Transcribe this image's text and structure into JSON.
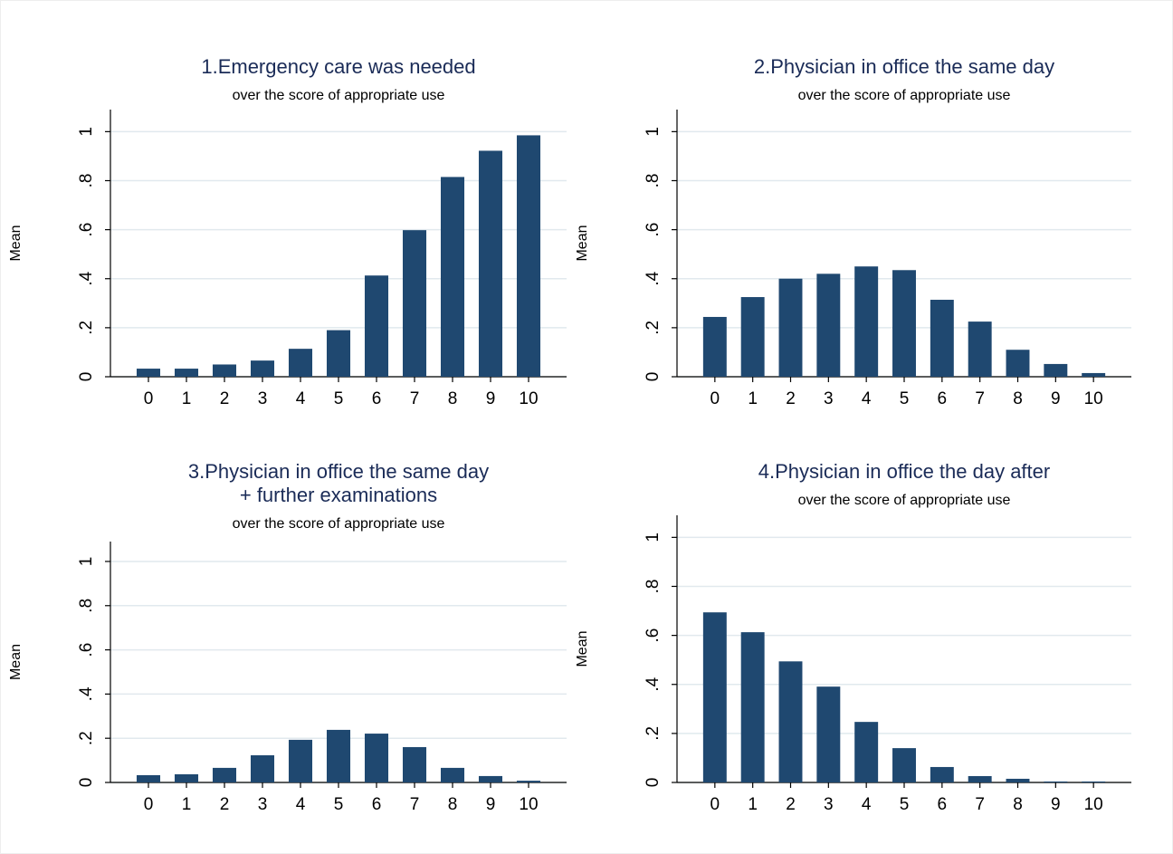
{
  "chart_data": [
    {
      "type": "bar",
      "title": [
        "1.Emergency care was needed"
      ],
      "subtitle": "over the score of appropriate use",
      "ylabel": "Mean",
      "categories": [
        0,
        1,
        2,
        3,
        4,
        5,
        6,
        7,
        8,
        9,
        10
      ],
      "values": [
        0.033,
        0.033,
        0.05,
        0.066,
        0.114,
        0.19,
        0.413,
        0.598,
        0.815,
        0.922,
        0.985
      ],
      "color": "#1f4870",
      "ylim": [
        0,
        1.09
      ],
      "yticks": [
        0,
        {
          "value": 0.2,
          "label": ".2"
        },
        {
          "value": 0.4,
          "label": ".4"
        },
        {
          "value": 0.6,
          "label": ".6"
        },
        {
          "value": 0.8,
          "label": ".8"
        },
        1
      ],
      "grid": true
    },
    {
      "type": "bar",
      "title": [
        "2.Physician in office the same day"
      ],
      "subtitle": "over the score of appropriate use",
      "ylabel": "Mean",
      "categories": [
        0,
        1,
        2,
        3,
        4,
        5,
        6,
        7,
        8,
        9,
        10
      ],
      "values": [
        0.244,
        0.325,
        0.4,
        0.42,
        0.45,
        0.435,
        0.314,
        0.225,
        0.11,
        0.052,
        0.015
      ],
      "color": "#1f4870",
      "ylim": [
        0,
        1.09
      ],
      "yticks": [
        0,
        {
          "value": 0.2,
          "label": ".2"
        },
        {
          "value": 0.4,
          "label": ".4"
        },
        {
          "value": 0.6,
          "label": ".6"
        },
        {
          "value": 0.8,
          "label": ".8"
        },
        1
      ],
      "grid": true
    },
    {
      "type": "bar",
      "title": [
        "3.Physician in office the same day",
        "+ further examinations"
      ],
      "subtitle": "over the score of appropriate use",
      "ylabel": "Mean",
      "categories": [
        0,
        1,
        2,
        3,
        4,
        5,
        6,
        7,
        8,
        9,
        10
      ],
      "values": [
        0.033,
        0.037,
        0.066,
        0.123,
        0.193,
        0.238,
        0.221,
        0.16,
        0.066,
        0.029,
        0.008
      ],
      "color": "#1f4870",
      "ylim": [
        0,
        1.09
      ],
      "yticks": [
        0,
        {
          "value": 0.2,
          "label": ".2"
        },
        {
          "value": 0.4,
          "label": ".4"
        },
        {
          "value": 0.6,
          "label": ".6"
        },
        {
          "value": 0.8,
          "label": ".8"
        },
        1
      ],
      "grid": true
    },
    {
      "type": "bar",
      "title": [
        "4.Physician in office the day after"
      ],
      "subtitle": "over the score of appropriate use",
      "ylabel": "Mean",
      "categories": [
        0,
        1,
        2,
        3,
        4,
        5,
        6,
        7,
        8,
        9,
        10
      ],
      "values": [
        0.694,
        0.613,
        0.494,
        0.391,
        0.247,
        0.14,
        0.063,
        0.026,
        0.015,
        0.004,
        0.004
      ],
      "color": "#1f4870",
      "ylim": [
        0,
        1.09
      ],
      "yticks": [
        0,
        {
          "value": 0.2,
          "label": ".2"
        },
        {
          "value": 0.4,
          "label": ".4"
        },
        {
          "value": 0.6,
          "label": ".6"
        },
        {
          "value": 0.8,
          "label": ".8"
        },
        1
      ],
      "grid": true
    }
  ]
}
